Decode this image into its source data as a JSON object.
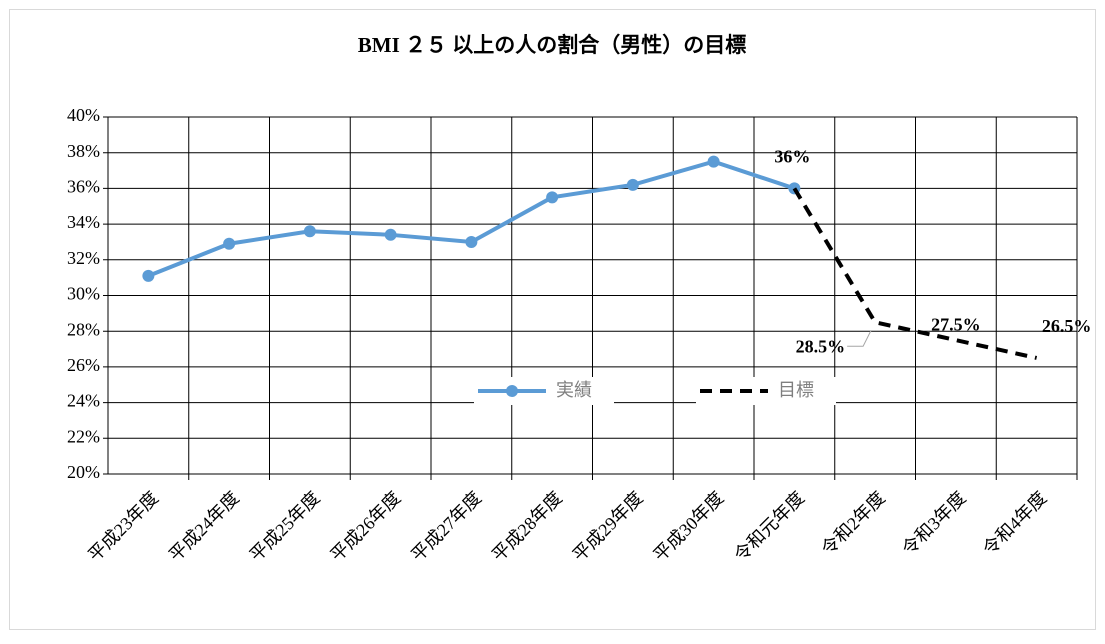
{
  "chart_data": {
    "type": "line",
    "title": "BMI ２５ 以上の人の割合（男性）の目標",
    "categories": [
      "平成23年度",
      "平成24年度",
      "平成25年度",
      "平成26年度",
      "平成27年度",
      "平成28年度",
      "平成29年度",
      "平成30年度",
      "令和元年度",
      "令和2年度",
      "令和3年度",
      "令和4年度"
    ],
    "series": [
      {
        "name": "実績",
        "color": "#5b9bd5",
        "dash": false,
        "markers": true,
        "values": [
          31.1,
          32.9,
          33.6,
          33.4,
          33.0,
          35.5,
          36.2,
          37.5,
          36.0,
          null,
          null,
          null
        ]
      },
      {
        "name": "目標",
        "color": "#000000",
        "dash": true,
        "markers": false,
        "values": [
          null,
          null,
          null,
          null,
          null,
          null,
          null,
          null,
          36,
          28.5,
          27.5,
          26.5
        ],
        "value_labels": [
          null,
          null,
          null,
          null,
          null,
          null,
          null,
          null,
          "36%",
          "28.5%",
          "27.5%",
          "26.5%"
        ]
      }
    ],
    "ylim": [
      20,
      40
    ],
    "yticks": [
      {
        "value": 20,
        "label": "20%"
      },
      {
        "value": 22,
        "label": "22%"
      },
      {
        "value": 24,
        "label": "24%"
      },
      {
        "value": 26,
        "label": "26%"
      },
      {
        "value": 28,
        "label": "28%"
      },
      {
        "value": 30,
        "label": "30%"
      },
      {
        "value": 32,
        "label": "32%"
      },
      {
        "value": 34,
        "label": "34%"
      },
      {
        "value": 36,
        "label": "36%"
      },
      {
        "value": 38,
        "label": "38%"
      },
      {
        "value": 40,
        "label": "40%"
      }
    ],
    "grid": true,
    "legend": "center"
  }
}
